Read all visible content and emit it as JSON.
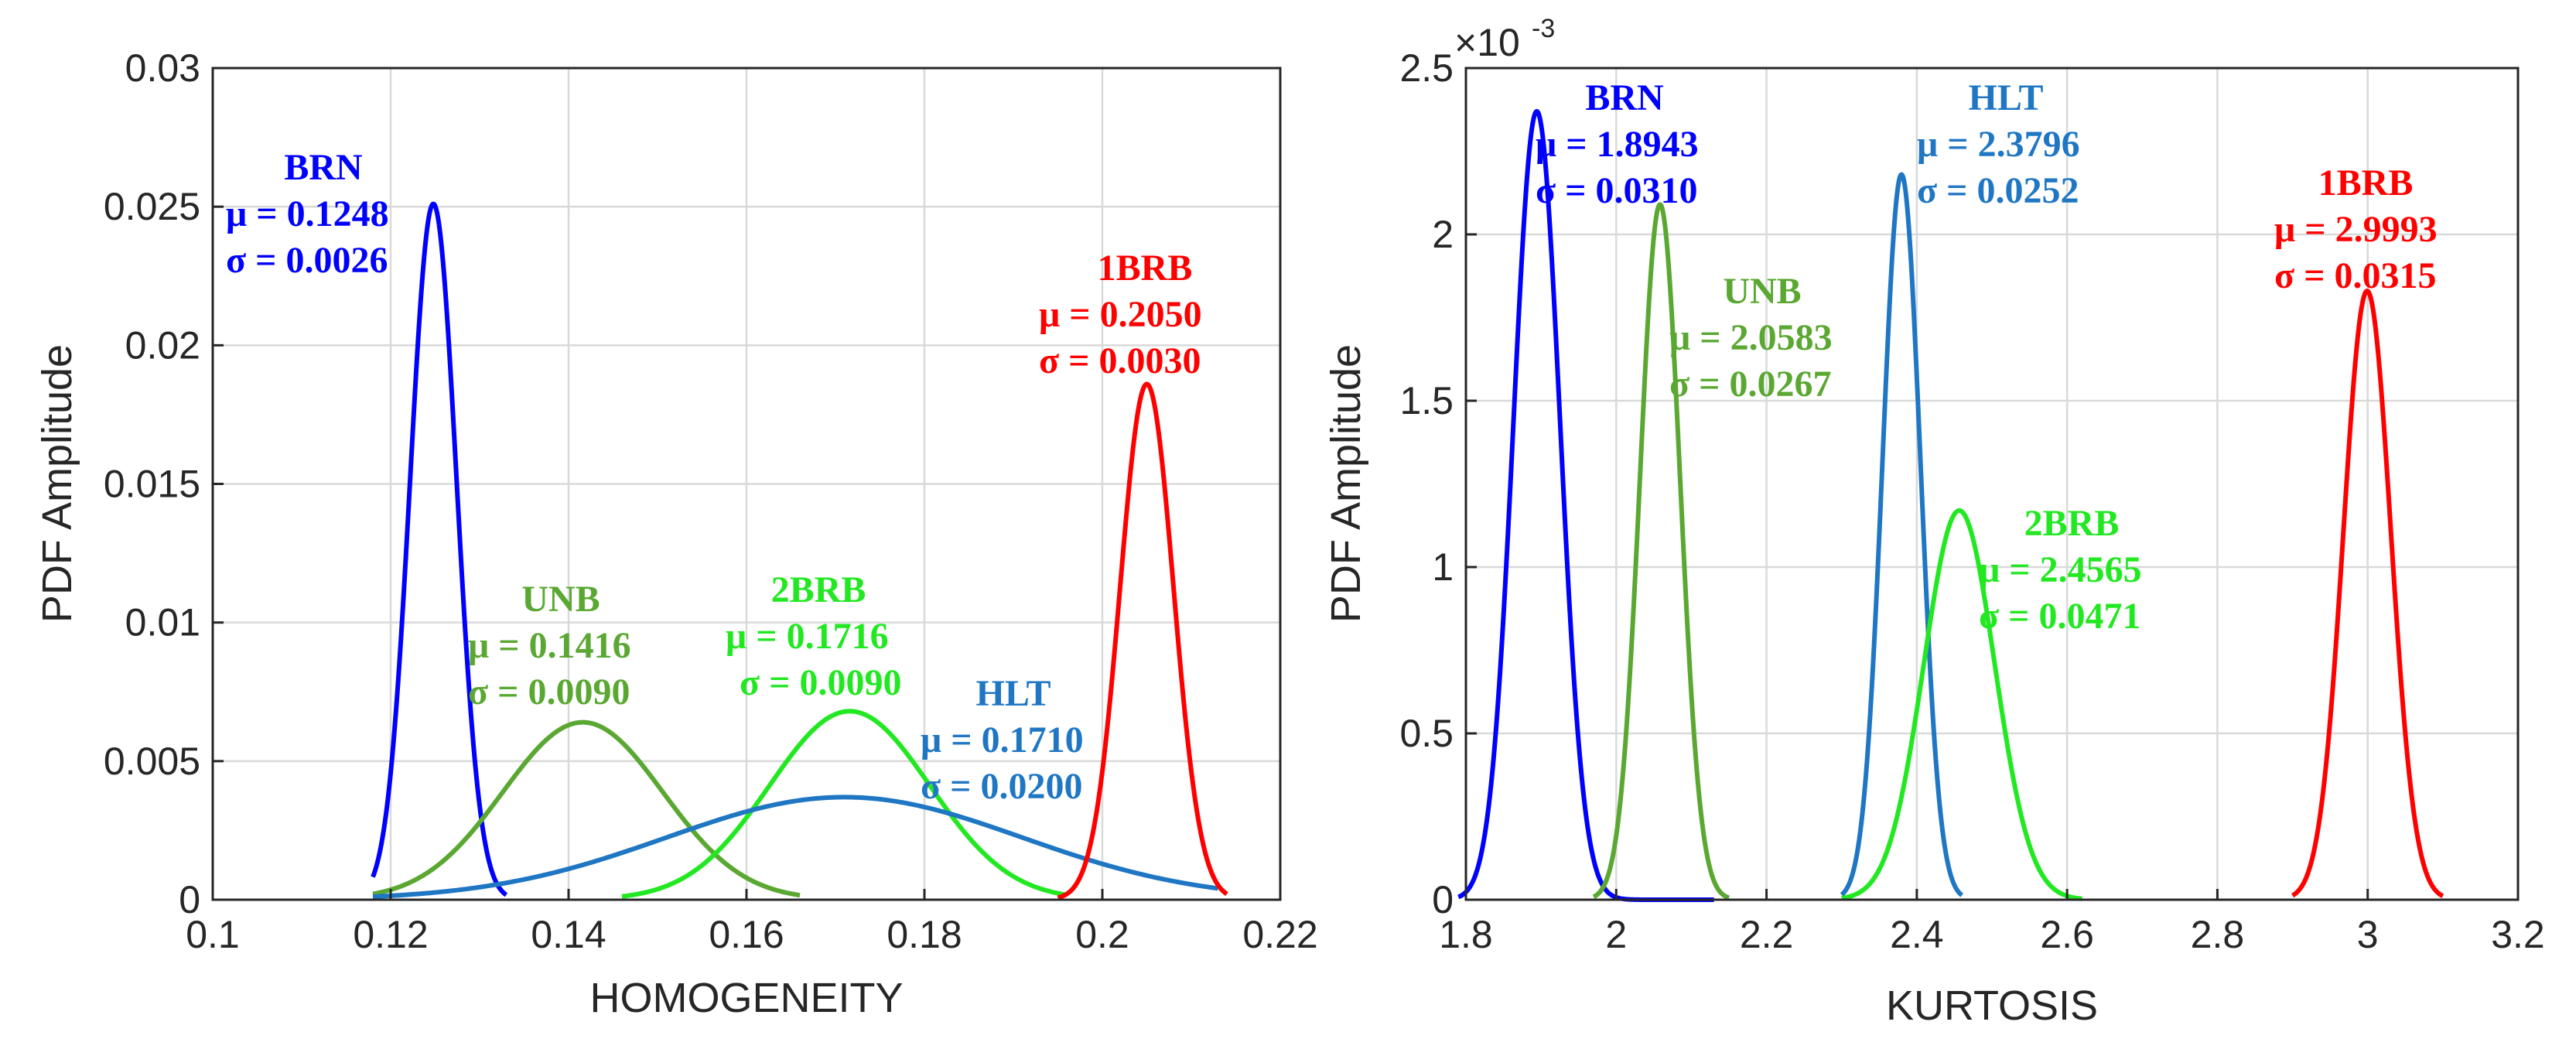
{
  "chart_data": [
    {
      "type": "line",
      "xlabel": "HOMOGENEITY",
      "ylabel": "PDF Amplitude",
      "xlim": [
        0.1,
        0.22
      ],
      "ylim": [
        0,
        0.03
      ],
      "xticks": [
        "0.1",
        "0.12",
        "0.14",
        "0.16",
        "0.18",
        "0.2",
        "0.22"
      ],
      "yticks": [
        "0",
        "0.005",
        "0.01",
        "0.015",
        "0.02",
        "0.025",
        "0.03"
      ],
      "grid": true,
      "series": [
        {
          "name": "BRN",
          "mu": 0.1248,
          "sigma": 0.0026,
          "peak": 0.0251,
          "x_range": [
            0.118,
            0.133
          ],
          "color": "#0000ff",
          "label": "BRN",
          "mu_text": "μ = 0.1248",
          "sigma_text": "σ = 0.0026"
        },
        {
          "name": "UNB",
          "mu": 0.1416,
          "sigma": 0.009,
          "peak": 0.0064,
          "x_range": [
            0.118,
            0.166
          ],
          "color": "#5aa832",
          "label": "UNB",
          "mu_text": "μ = 0.1416",
          "sigma_text": "σ = 0.0090"
        },
        {
          "name": "2BRB",
          "mu": 0.1716,
          "sigma": 0.009,
          "peak": 0.0068,
          "x_range": [
            0.146,
            0.196
          ],
          "color": "#22e822",
          "label": "2BRB",
          "mu_text": "μ = 0.1716",
          "sigma_text": "σ = 0.0090"
        },
        {
          "name": "HLT",
          "mu": 0.171,
          "sigma": 0.02,
          "peak": 0.0037,
          "x_range": [
            0.118,
            0.213
          ],
          "color": "#1f77c4",
          "label": "HLT",
          "mu_text": "μ = 0.1710",
          "sigma_text": "σ = 0.0200"
        },
        {
          "name": "1BRB",
          "mu": 0.205,
          "sigma": 0.003,
          "peak": 0.0186,
          "x_range": [
            0.195,
            0.214
          ],
          "color": "#ff0000",
          "label": "1BRB",
          "mu_text": "μ = 0.2050",
          "sigma_text": "σ = 0.0030"
        }
      ]
    },
    {
      "type": "line",
      "xlabel": "KURTOSIS",
      "ylabel": "PDF Amplitude",
      "exponent": "×10",
      "exponent_power": "-3",
      "xlim": [
        1.8,
        3.2
      ],
      "ylim": [
        0,
        2.5
      ],
      "xticks": [
        "1.8",
        "2",
        "2.2",
        "2.4",
        "2.6",
        "2.8",
        "3",
        "3.2"
      ],
      "yticks": [
        "0",
        "0.5",
        "1",
        "1.5",
        "2",
        "2.5"
      ],
      "grid": true,
      "series": [
        {
          "name": "BRN",
          "mu": 1.8943,
          "sigma": 0.031,
          "peak": 2.37,
          "x_range": [
            1.79,
            2.13
          ],
          "color": "#0000ff",
          "label": "BRN",
          "mu_text": "μ = 1.8943",
          "sigma_text": "σ = 0.0310"
        },
        {
          "name": "UNB",
          "mu": 2.0583,
          "sigma": 0.0267,
          "peak": 2.09,
          "x_range": [
            1.97,
            2.15
          ],
          "color": "#5aa832",
          "label": "UNB",
          "mu_text": "μ = 2.0583",
          "sigma_text": "σ = 0.0267"
        },
        {
          "name": "HLT",
          "mu": 2.3796,
          "sigma": 0.0252,
          "peak": 2.18,
          "x_range": [
            2.3,
            2.46
          ],
          "color": "#1f77c4",
          "label": "HLT",
          "mu_text": "μ = 2.3796",
          "sigma_text": "σ = 0.0252"
        },
        {
          "name": "2BRB",
          "mu": 2.4565,
          "sigma": 0.0471,
          "peak": 1.17,
          "x_range": [
            2.3,
            2.62
          ],
          "color": "#22e822",
          "label": "2BRB",
          "mu_text": "μ = 2.4565",
          "sigma_text": "σ = 0.0471"
        },
        {
          "name": "1BRB",
          "mu": 2.9993,
          "sigma": 0.0315,
          "peak": 1.83,
          "x_range": [
            2.9,
            3.1
          ],
          "color": "#ff0000",
          "label": "1BRB",
          "mu_text": "μ = 2.9993",
          "sigma_text": "σ = 0.0315"
        }
      ]
    }
  ]
}
